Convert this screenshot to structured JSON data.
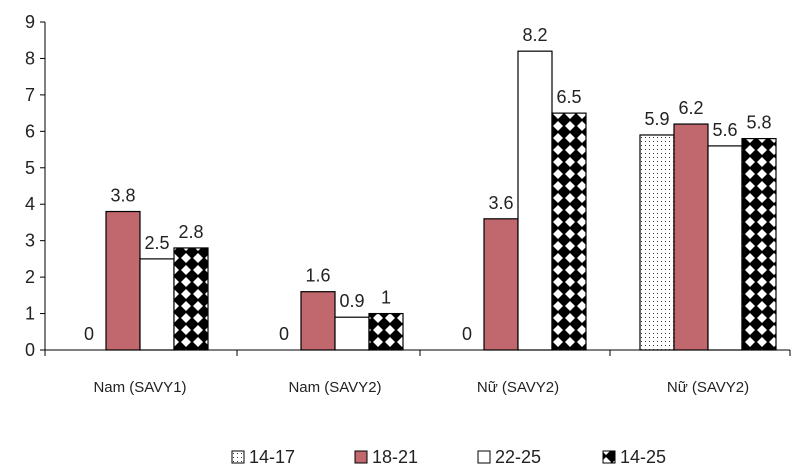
{
  "chart_data": {
    "type": "bar",
    "title": "",
    "xlabel": "",
    "ylabel": "",
    "ylim": [
      0,
      9
    ],
    "yticks": [
      0,
      1,
      2,
      3,
      4,
      5,
      6,
      7,
      8,
      9
    ],
    "grid": false,
    "legend_position": "bottom",
    "categories": [
      "Nam (SAVY1)",
      "Nam (SAVY2)",
      "Nữ (SAVY2)",
      "Nữ (SAVY2)"
    ],
    "series": [
      {
        "name": "14-17",
        "pattern": "dots",
        "color": "#ffffff",
        "values": [
          0,
          0,
          0,
          5.9
        ],
        "labels": [
          "0",
          "0",
          "0",
          "5.9"
        ]
      },
      {
        "name": "18-21",
        "pattern": "solid",
        "color": "#c0686e",
        "values": [
          3.8,
          1.6,
          3.6,
          6.2
        ],
        "labels": [
          "3.8",
          "1.6",
          "3.6",
          "6.2"
        ]
      },
      {
        "name": "22-25",
        "pattern": "none",
        "color": "#ffffff",
        "values": [
          2.5,
          0.9,
          8.2,
          5.6
        ],
        "labels": [
          "2.5",
          "0.9",
          "8.2",
          "5.6"
        ]
      },
      {
        "name": "14-25",
        "pattern": "checker",
        "color": "#000000",
        "values": [
          2.8,
          1,
          6.5,
          5.8
        ],
        "labels": [
          "2.8",
          "1",
          "6.5",
          "5.8"
        ]
      }
    ]
  }
}
